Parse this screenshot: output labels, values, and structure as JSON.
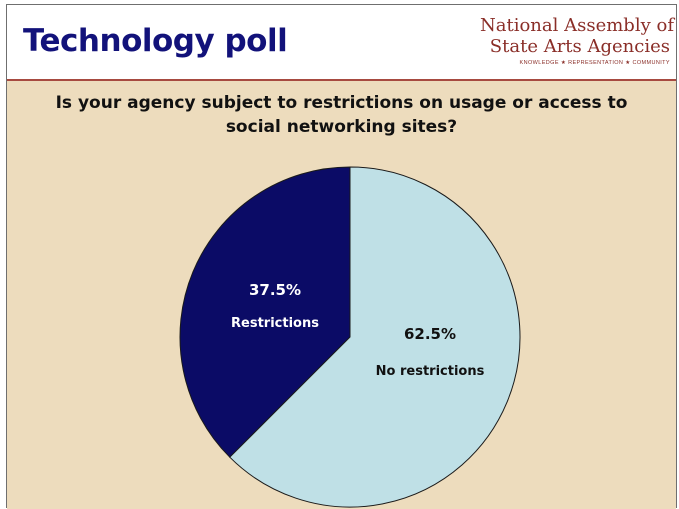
{
  "header": {
    "title": "Technology poll",
    "logo_line1": "National Assembly of",
    "logo_line2": "State Arts Agencies",
    "logo_tagline": "KNOWLEDGE ★ REPRESENTATION ★ COMMUNITY"
  },
  "colors": {
    "title": "#12127a",
    "logo": "#8a2e28",
    "background": "#eddcbd",
    "restrictions": "#0b0b66",
    "no_restrictions": "#bfe0e6"
  },
  "chart_data": {
    "type": "pie",
    "title": "Is your agency subject to restrictions on usage or access to social networking sites?",
    "title_lines": [
      "Is your agency subject to restrictions on usage or access to",
      "social networking sites?"
    ],
    "slices": [
      {
        "label": "Restrictions",
        "value": 37.5,
        "value_label": "37.5%",
        "color": "#0b0b66",
        "text_color": "#ffffff"
      },
      {
        "label": "No restrictions",
        "value": 62.5,
        "value_label": "62.5%",
        "color": "#bfe0e6",
        "text_color": "#111111"
      }
    ]
  }
}
